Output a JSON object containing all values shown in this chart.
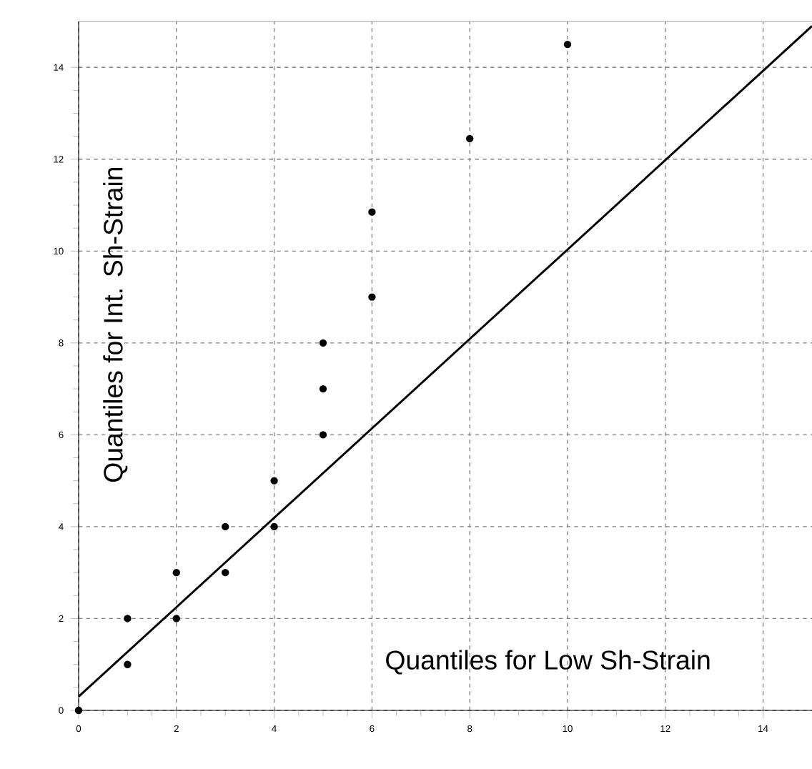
{
  "chart_data": {
    "type": "scatter",
    "xlabel": "Quantiles for Low Sh-Strain",
    "ylabel": "Quantiles for Int. Sh-Strain",
    "x": [
      0,
      1,
      1,
      2,
      2,
      3,
      3,
      4,
      4,
      5,
      5,
      5,
      6,
      6,
      8,
      10
    ],
    "series": [
      {
        "color": "#000000",
        "marker": "circle",
        "values": [
          0,
          1,
          2,
          2,
          3,
          3,
          4,
          4,
          5,
          6,
          7,
          8,
          9,
          10.85,
          12.45,
          14.5
        ]
      },
      {
        "type": "line",
        "color": "#000000",
        "marker": "none",
        "x": [
          0,
          15
        ],
        "values": [
          0.3,
          14.9
        ]
      }
    ],
    "xlim": [
      0,
      15
    ],
    "ylim": [
      0,
      15
    ],
    "xticks": [
      0,
      2,
      4,
      6,
      8,
      10,
      12,
      14
    ],
    "yticks": [
      0,
      2,
      4,
      6,
      8,
      10,
      12,
      14
    ],
    "grid": true
  }
}
